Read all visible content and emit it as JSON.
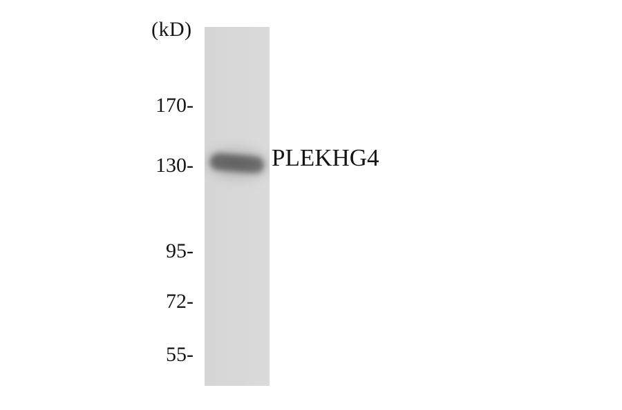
{
  "blot": {
    "unit_label": "(kD)",
    "band_label": "PLEKHG4",
    "markers": [
      "170-",
      "130-",
      "95-",
      "72-",
      "55-"
    ],
    "band": {
      "lane_index": 1,
      "at_marker": "130-"
    },
    "colors": {
      "background": "#ffffff",
      "lane": "#d8d8d8",
      "band": "#6a6a6a",
      "text": "#141414"
    }
  }
}
